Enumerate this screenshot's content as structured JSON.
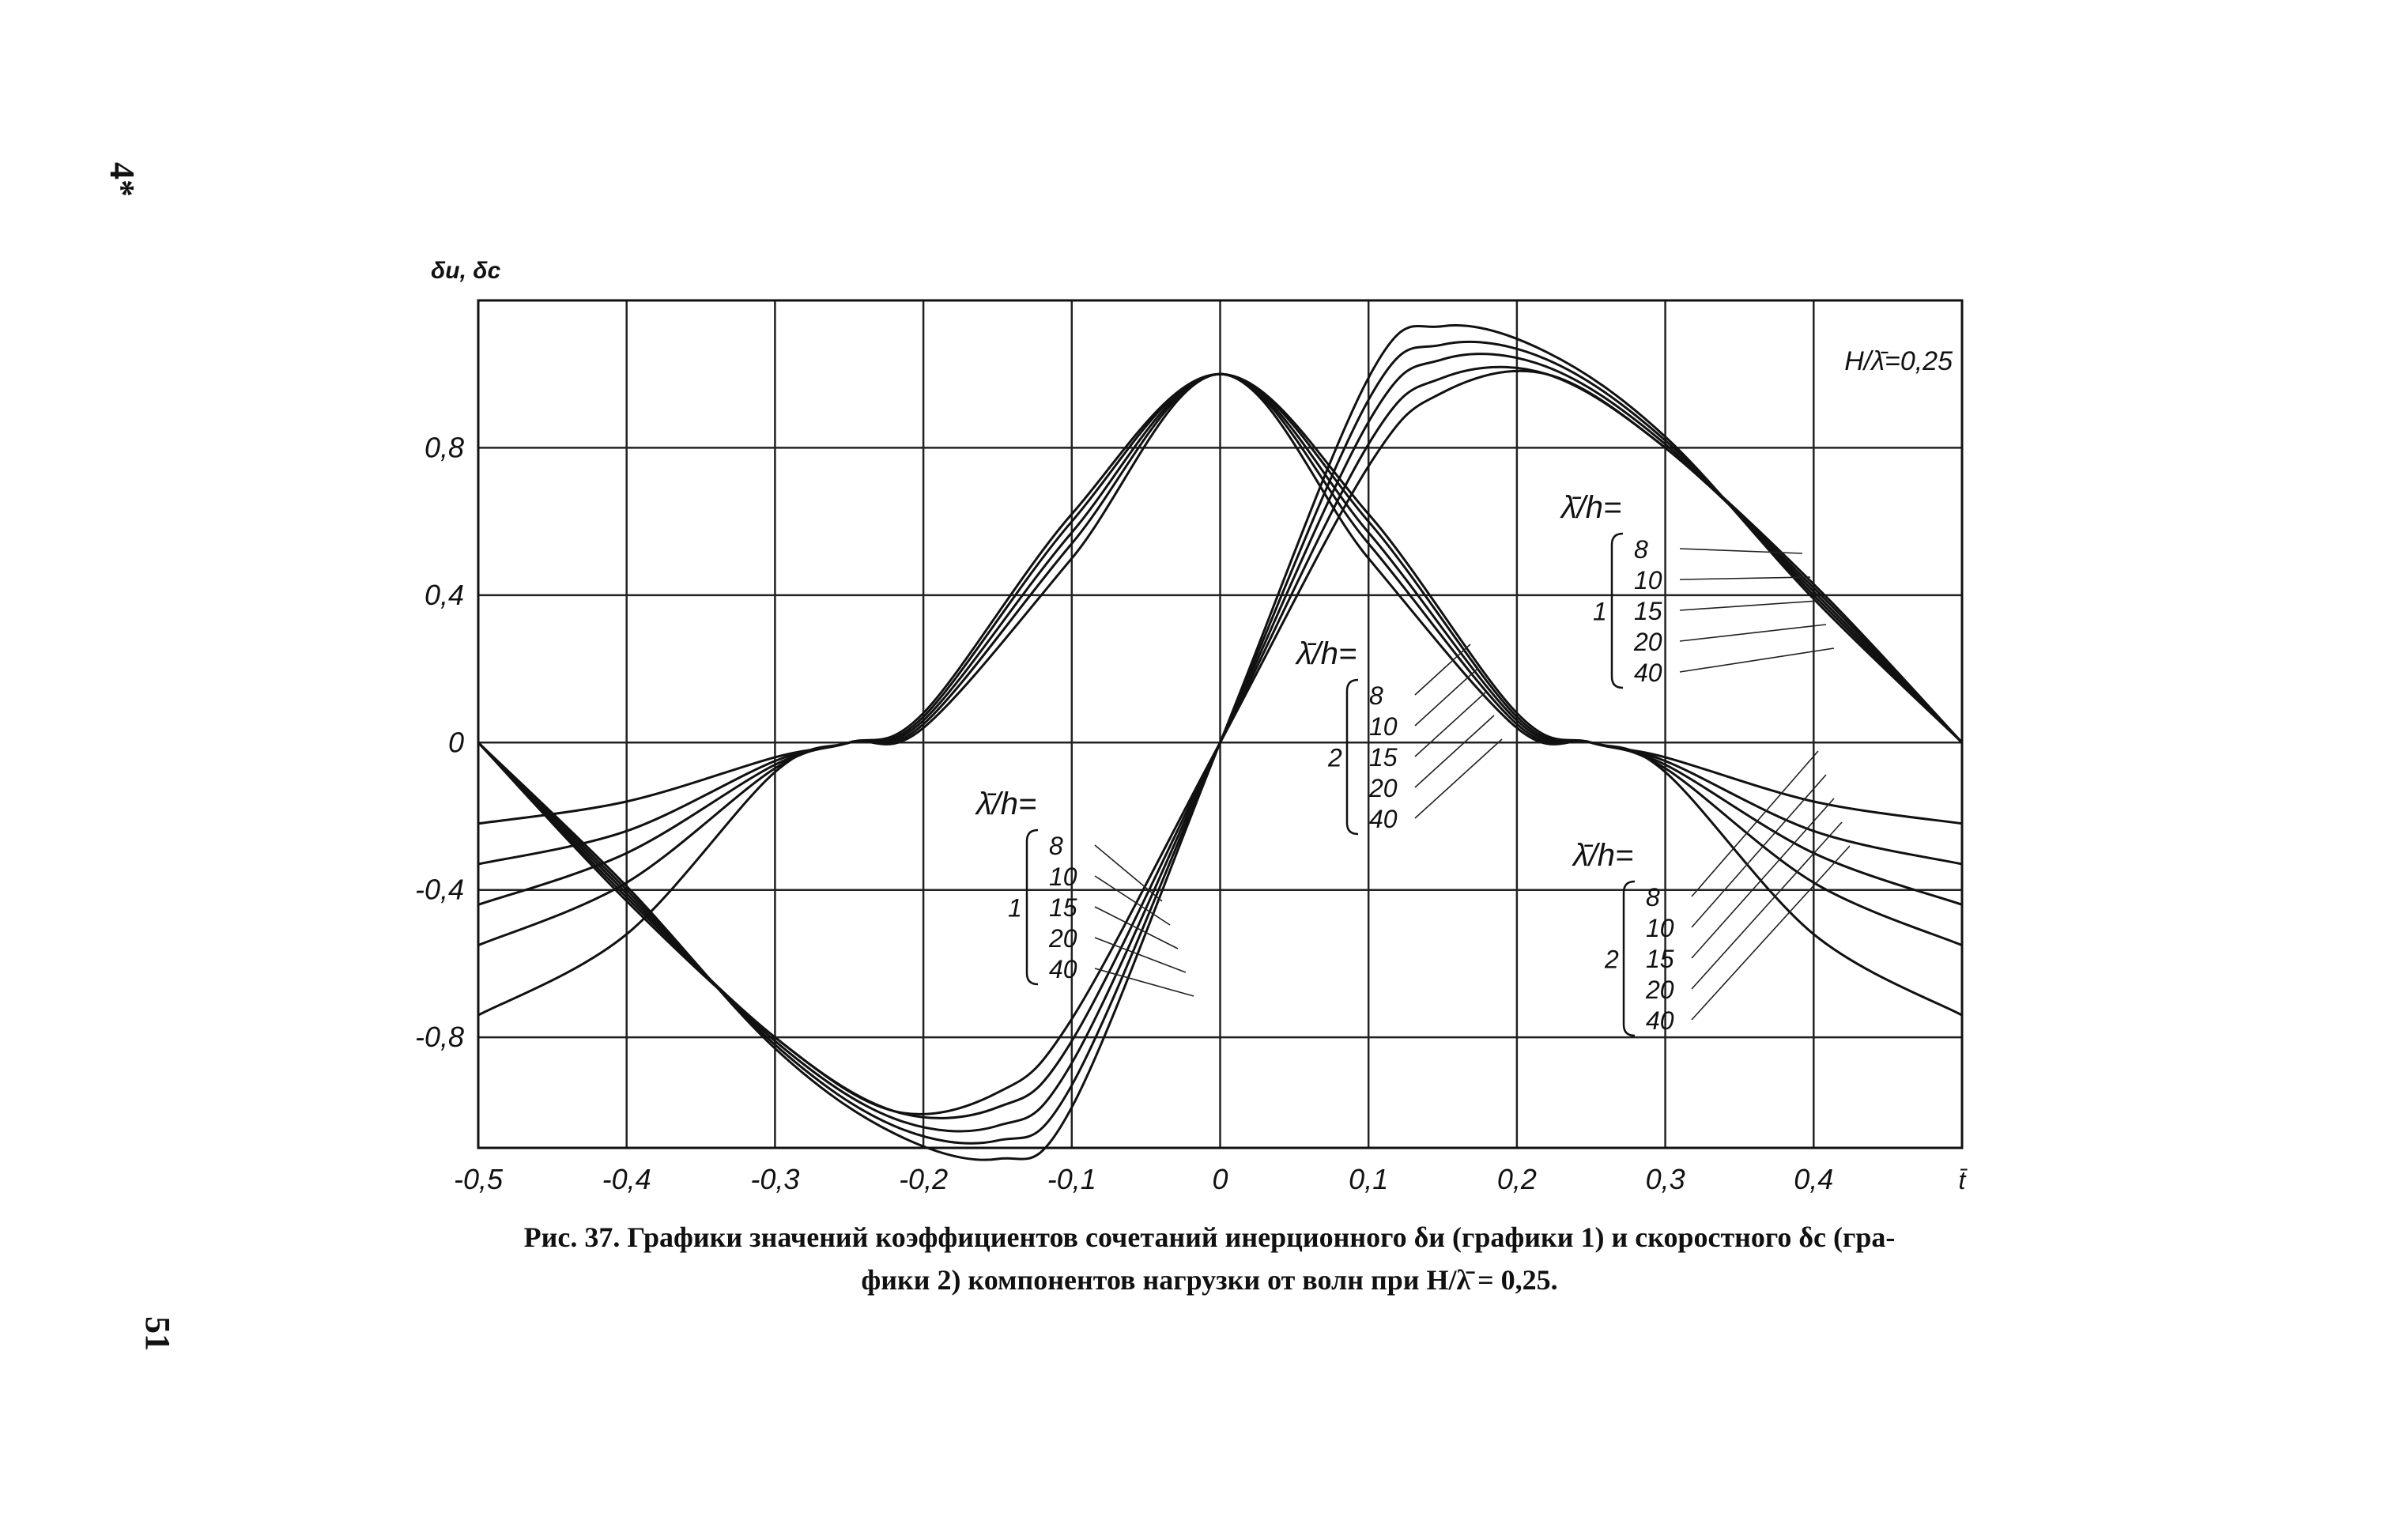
{
  "page": {
    "margin_top_mark": "4*",
    "margin_page_number": "51"
  },
  "caption": {
    "line1": "Рис. 37. Графики значений коэффициентов сочетаний инерционного δи (графики 1) и скоростного δс (гра-",
    "line2": "фики 2) компонентов нагрузки от волн при H/λ̄ = 0,25."
  },
  "chart_data": {
    "type": "line",
    "title": "",
    "ylabel": "δи, δс",
    "xlabel": "t̄",
    "xlim": [
      -0.5,
      0.5
    ],
    "ylim": [
      -1.1,
      1.2
    ],
    "x_ticks": [
      "-0,5",
      "-0,4",
      "-0,3",
      "-0,2",
      "-0,1",
      "0",
      "0,1",
      "0,2",
      "0,3",
      "0,4"
    ],
    "x_tick_values": [
      -0.5,
      -0.4,
      -0.3,
      -0.2,
      -0.1,
      0,
      0.1,
      0.2,
      0.3,
      0.4
    ],
    "y_ticks": [
      "0,8",
      "0,4",
      "0",
      "-0,4",
      "-0,8"
    ],
    "y_tick_values": [
      0.8,
      0.4,
      0,
      -0.4,
      -0.8
    ],
    "grid": true,
    "annotation": "H/λ̄=0,25",
    "lambda_h_values": [
      "8",
      "10",
      "15",
      "20",
      "40"
    ],
    "label_groups": [
      {
        "header": "λ̄/h=",
        "group": "1",
        "items": [
          "8",
          "10",
          "15",
          "20",
          "40"
        ],
        "place": "upper-right"
      },
      {
        "header": "λ̄/h=",
        "group": "2",
        "items": [
          "8",
          "10",
          "15",
          "20",
          "40"
        ],
        "place": "center"
      },
      {
        "header": "λ̄/h=",
        "group": "1",
        "items": [
          "8",
          "10",
          "15",
          "20",
          "40"
        ],
        "place": "lower-center"
      },
      {
        "header": "λ̄/h=",
        "group": "2",
        "items": [
          "8",
          "10",
          "15",
          "20",
          "40"
        ],
        "place": "lower-right"
      }
    ],
    "series": [
      {
        "group": "1",
        "lambda_h": "8",
        "x": [
          -0.5,
          -0.4,
          -0.3,
          -0.25,
          -0.2,
          -0.1,
          0,
          0.1,
          0.2,
          0.25,
          0.3,
          0.4,
          0.5
        ],
        "y": [
          -0.22,
          -0.16,
          -0.04,
          0,
          0.08,
          0.62,
          1.0,
          0.62,
          0.08,
          0,
          -0.04,
          -0.16,
          -0.22
        ]
      },
      {
        "group": "1",
        "lambda_h": "10",
        "x": [
          -0.5,
          -0.4,
          -0.3,
          -0.25,
          -0.2,
          -0.1,
          0,
          0.1,
          0.2,
          0.25,
          0.3,
          0.4,
          0.5
        ],
        "y": [
          -0.33,
          -0.24,
          -0.05,
          0,
          0.07,
          0.6,
          1.0,
          0.6,
          0.07,
          0,
          -0.05,
          -0.24,
          -0.33
        ]
      },
      {
        "group": "1",
        "lambda_h": "15",
        "x": [
          -0.5,
          -0.4,
          -0.3,
          -0.25,
          -0.2,
          -0.1,
          0,
          0.1,
          0.2,
          0.25,
          0.3,
          0.4,
          0.5
        ],
        "y": [
          -0.44,
          -0.3,
          -0.06,
          0,
          0.06,
          0.57,
          1.0,
          0.57,
          0.06,
          0,
          -0.06,
          -0.3,
          -0.44
        ]
      },
      {
        "group": "1",
        "lambda_h": "20",
        "x": [
          -0.5,
          -0.4,
          -0.3,
          -0.25,
          -0.2,
          -0.1,
          0,
          0.1,
          0.2,
          0.25,
          0.3,
          0.4,
          0.5
        ],
        "y": [
          -0.55,
          -0.38,
          -0.07,
          0,
          0.05,
          0.54,
          1.0,
          0.54,
          0.05,
          0,
          -0.07,
          -0.38,
          -0.55
        ]
      },
      {
        "group": "1",
        "lambda_h": "40",
        "x": [
          -0.5,
          -0.4,
          -0.3,
          -0.25,
          -0.2,
          -0.1,
          0,
          0.1,
          0.2,
          0.25,
          0.3,
          0.4,
          0.5
        ],
        "y": [
          -0.74,
          -0.52,
          -0.08,
          0,
          0.04,
          0.5,
          1.0,
          0.5,
          0.04,
          0,
          -0.08,
          -0.52,
          -0.74
        ]
      },
      {
        "group": "2",
        "lambda_h": "8",
        "x": [
          -0.5,
          -0.4,
          -0.3,
          -0.22,
          -0.15,
          -0.1,
          0,
          0.1,
          0.15,
          0.22,
          0.3,
          0.4,
          0.5
        ],
        "y": [
          0,
          -0.43,
          -0.8,
          -1.0,
          -0.95,
          -0.75,
          0,
          0.75,
          0.95,
          1.0,
          0.8,
          0.43,
          0
        ]
      },
      {
        "group": "2",
        "lambda_h": "10",
        "x": [
          -0.5,
          -0.4,
          -0.3,
          -0.22,
          -0.15,
          -0.1,
          0,
          0.1,
          0.15,
          0.22,
          0.3,
          0.4,
          0.5
        ],
        "y": [
          0,
          -0.42,
          -0.8,
          -1.0,
          -0.99,
          -0.81,
          0,
          0.81,
          0.99,
          1.0,
          0.8,
          0.42,
          0
        ]
      },
      {
        "group": "2",
        "lambda_h": "15",
        "x": [
          -0.5,
          -0.4,
          -0.3,
          -0.22,
          -0.15,
          -0.1,
          0,
          0.1,
          0.15,
          0.22,
          0.3,
          0.4,
          0.5
        ],
        "y": [
          0,
          -0.41,
          -0.81,
          -1.02,
          -1.04,
          -0.87,
          0,
          0.87,
          1.04,
          1.02,
          0.81,
          0.41,
          0
        ]
      },
      {
        "group": "2",
        "lambda_h": "20",
        "x": [
          -0.5,
          -0.4,
          -0.3,
          -0.22,
          -0.15,
          -0.1,
          0,
          0.1,
          0.15,
          0.22,
          0.3,
          0.4,
          0.5
        ],
        "y": [
          0,
          -0.4,
          -0.82,
          -1.04,
          -1.08,
          -0.93,
          0,
          0.93,
          1.08,
          1.04,
          0.82,
          0.4,
          0
        ]
      },
      {
        "group": "2",
        "lambda_h": "40",
        "x": [
          -0.5,
          -0.4,
          -0.3,
          -0.22,
          -0.15,
          -0.1,
          0,
          0.1,
          0.15,
          0.22,
          0.3,
          0.4,
          0.5
        ],
        "y": [
          0,
          -0.39,
          -0.83,
          -1.06,
          -1.13,
          -0.99,
          0,
          0.99,
          1.13,
          1.06,
          0.83,
          0.39,
          0
        ]
      }
    ]
  }
}
